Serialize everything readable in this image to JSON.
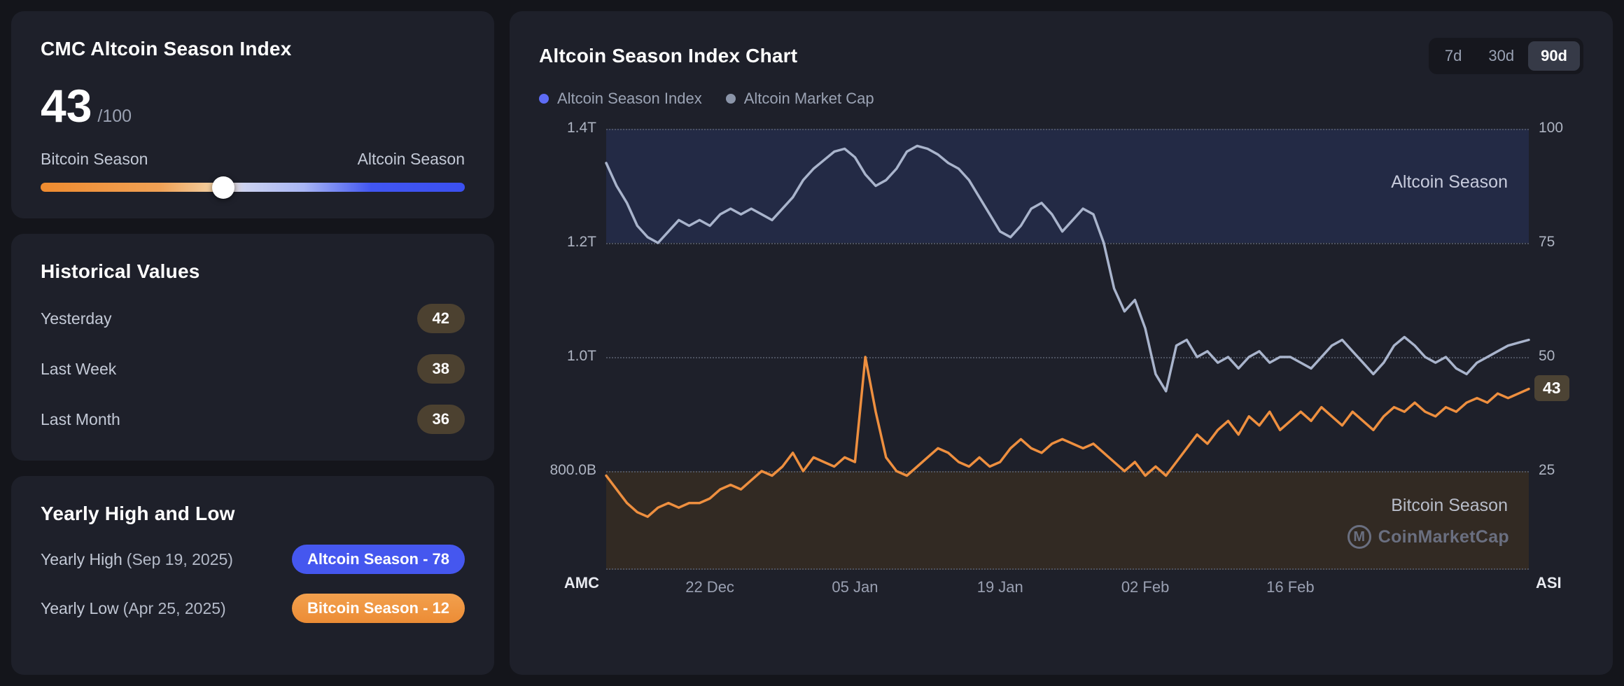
{
  "colors": {
    "page_bg": "#14151b",
    "card_bg": "#1e202a",
    "altcoin_accent": "#4557ef",
    "bitcoin_accent": "#ee9440",
    "asi_line": "#ee8f3f",
    "amc_line": "#a9b4cc",
    "altcoin_band": "#232a45",
    "bitcoin_band": "#322a23"
  },
  "index_card": {
    "title": "CMC Altcoin Season Index",
    "value": "43",
    "max_suffix": "/100",
    "left_label": "Bitcoin Season",
    "right_label": "Altcoin Season",
    "slider_percent": 43
  },
  "historical": {
    "title": "Historical Values",
    "rows": [
      {
        "label": "Yesterday",
        "value": "42"
      },
      {
        "label": "Last Week",
        "value": "38"
      },
      {
        "label": "Last Month",
        "value": "36"
      }
    ]
  },
  "yearly": {
    "title": "Yearly High and Low",
    "high": {
      "label": "Yearly High",
      "date": "(Sep 19, 2025)",
      "badge": "Altcoin Season - 78"
    },
    "low": {
      "label": "Yearly Low",
      "date": "(Apr 25, 2025)",
      "badge": "Bitcoin Season - 12"
    }
  },
  "chart_card": {
    "title": "Altcoin Season Index Chart",
    "ranges": [
      {
        "label": "7d",
        "active": false
      },
      {
        "label": "30d",
        "active": false
      },
      {
        "label": "90d",
        "active": true
      }
    ],
    "legend": [
      {
        "label": "Altcoin Season Index",
        "color": "#5e6cf5"
      },
      {
        "label": "Altcoin Market Cap",
        "color": "#8b95a9"
      }
    ],
    "zone_top_label": "Altcoin Season",
    "zone_bottom_label": "Bitcoin Season",
    "left_axis_title": "AMC",
    "right_axis_title": "ASI",
    "current_badge": "43",
    "watermark": "CoinMarketCap"
  },
  "chart_data": {
    "type": "line",
    "title": "Altcoin Season Index Chart",
    "n_points": 90,
    "x_tick_labels": [
      "22 Dec",
      "05 Jan",
      "19 Jan",
      "02 Feb",
      "16 Feb"
    ],
    "x_tick_positions": [
      10,
      24,
      38,
      52,
      66
    ],
    "left_axis": {
      "title": "AMC",
      "unit": "altcoin market cap (USD)",
      "ticks": [
        "1.4T",
        "1.2T",
        "1.0T",
        "800.0B"
      ],
      "top_value": 1.4,
      "tick_step": 0.2
    },
    "right_axis": {
      "title": "ASI",
      "unit": "altcoin season index",
      "ticks": [
        "100",
        "75",
        "50",
        "25"
      ],
      "top_value": 100,
      "tick_step": 25
    },
    "bands": [
      {
        "label": "Altcoin Season",
        "axis": "right",
        "from": 100,
        "to": 75
      },
      {
        "label": "Bitcoin Season",
        "axis": "right",
        "from": 25,
        "to": "bottom"
      }
    ],
    "series": [
      {
        "name": "Altcoin Season Index",
        "axis": "right",
        "color": "#ee8f3f",
        "values": [
          24,
          21,
          18,
          16,
          15,
          17,
          18,
          17,
          18,
          18,
          19,
          21,
          22,
          21,
          23,
          25,
          24,
          26,
          29,
          25,
          28,
          27,
          26,
          28,
          27,
          50,
          38,
          28,
          25,
          24,
          26,
          28,
          30,
          29,
          27,
          26,
          28,
          26,
          27,
          30,
          32,
          30,
          29,
          31,
          32,
          31,
          30,
          31,
          29,
          27,
          25,
          27,
          24,
          26,
          24,
          27,
          30,
          33,
          31,
          34,
          36,
          33,
          37,
          35,
          38,
          34,
          36,
          38,
          36,
          39,
          37,
          35,
          38,
          36,
          34,
          37,
          39,
          38,
          40,
          38,
          37,
          39,
          38,
          40,
          41,
          40,
          42,
          41,
          42,
          43
        ]
      },
      {
        "name": "Altcoin Market Cap",
        "axis": "left",
        "color": "#a9b4cc",
        "values": [
          1.34,
          1.3,
          1.27,
          1.23,
          1.21,
          1.2,
          1.22,
          1.24,
          1.23,
          1.24,
          1.23,
          1.25,
          1.26,
          1.25,
          1.26,
          1.25,
          1.24,
          1.26,
          1.28,
          1.31,
          1.33,
          1.345,
          1.36,
          1.365,
          1.35,
          1.32,
          1.3,
          1.31,
          1.33,
          1.36,
          1.37,
          1.365,
          1.355,
          1.34,
          1.33,
          1.31,
          1.28,
          1.25,
          1.22,
          1.21,
          1.23,
          1.26,
          1.27,
          1.25,
          1.22,
          1.24,
          1.26,
          1.25,
          1.2,
          1.12,
          1.08,
          1.1,
          1.05,
          0.97,
          0.94,
          1.02,
          1.03,
          1.0,
          1.01,
          0.99,
          1.0,
          0.98,
          1.0,
          1.01,
          0.99,
          1.0,
          1.0,
          0.99,
          0.98,
          1.0,
          1.02,
          1.03,
          1.01,
          0.99,
          0.97,
          0.99,
          1.02,
          1.035,
          1.02,
          1.0,
          0.99,
          1.0,
          0.98,
          0.97,
          0.99,
          1.0,
          1.01,
          1.02,
          1.025,
          1.03
        ]
      }
    ]
  }
}
